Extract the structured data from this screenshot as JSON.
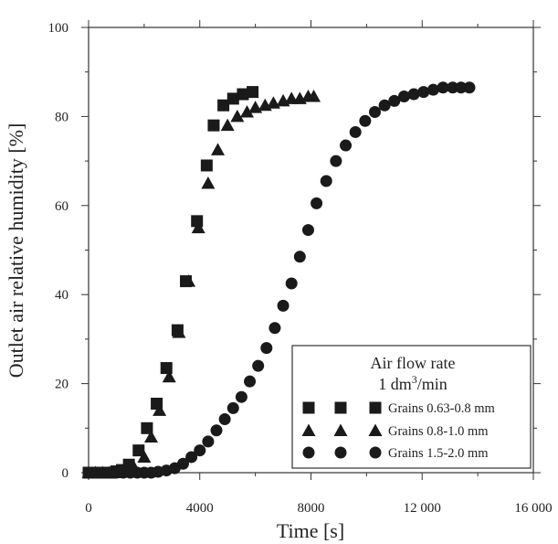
{
  "chart_data": {
    "type": "scatter",
    "xlabel": "Time [s]",
    "ylabel": "Outlet air relative humidity [%]",
    "xlim": [
      0,
      16000
    ],
    "ylim": [
      0,
      100
    ],
    "x_ticks": [
      0,
      4000,
      8000,
      12000,
      16000
    ],
    "x_tick_labels": [
      "0",
      "4000",
      "8000",
      "12 000",
      "16 000"
    ],
    "y_ticks": [
      0,
      20,
      40,
      60,
      80,
      100
    ],
    "y_tick_labels": [
      "0",
      "20",
      "40",
      "60",
      "80",
      "100"
    ],
    "grid": false,
    "legend": {
      "placement": "bottom-right",
      "title_line1": "Air flow rate",
      "title_line2_prefix": "1 dm",
      "title_line2_sup": "3",
      "title_line2_suffix": "/min"
    },
    "series": [
      {
        "name": "Grains 0.63-0.8 mm",
        "marker": "square",
        "color": "#1a1a1a",
        "x": [
          0,
          200,
          400,
          600,
          800,
          1000,
          1200,
          1450,
          1800,
          2100,
          2450,
          2800,
          3200,
          3500,
          3900,
          4250,
          4500,
          4850,
          5200,
          5550,
          5900
        ],
        "y": [
          0,
          0,
          0,
          0,
          0,
          0.3,
          0.6,
          1.8,
          5,
          10,
          15.5,
          23.5,
          32,
          43,
          56.5,
          69,
          78,
          82.5,
          84,
          85,
          85.5
        ]
      },
      {
        "name": "Grains 0.8-1.0 mm",
        "marker": "triangle",
        "color": "#1a1a1a",
        "x": [
          0,
          250,
          500,
          750,
          1000,
          1300,
          1650,
          2000,
          2250,
          2550,
          2900,
          3250,
          3600,
          3950,
          4300,
          4650,
          5000,
          5350,
          5700,
          6000,
          6350,
          6650,
          7000,
          7300,
          7600,
          7900,
          8100
        ],
        "y": [
          0,
          0,
          0,
          0,
          0,
          0.3,
          1,
          3.5,
          8,
          14,
          21.5,
          31.5,
          43,
          55,
          65,
          72.5,
          78,
          80,
          81,
          82,
          82.5,
          83,
          83.5,
          84,
          84,
          84.5,
          84.5
        ]
      },
      {
        "name": "Grains 1.5-2.0 mm",
        "marker": "circle",
        "color": "#1a1a1a",
        "x": [
          0,
          250,
          500,
          750,
          1000,
          1250,
          1500,
          1750,
          2000,
          2250,
          2500,
          2800,
          3100,
          3400,
          3700,
          4000,
          4300,
          4600,
          4900,
          5200,
          5500,
          5800,
          6100,
          6400,
          6700,
          7000,
          7300,
          7600,
          7900,
          8200,
          8550,
          8900,
          9250,
          9600,
          9950,
          10300,
          10650,
          11000,
          11350,
          11700,
          12050,
          12400,
          12750,
          13100,
          13400,
          13700
        ],
        "y": [
          0,
          0,
          0,
          0,
          0,
          0,
          0,
          0,
          0,
          0,
          0.2,
          0.5,
          1,
          2,
          3.5,
          5,
          7,
          9.5,
          12,
          14.5,
          17,
          20.5,
          24,
          28,
          32.5,
          37.5,
          42.5,
          48.5,
          54.5,
          60.5,
          65.5,
          70,
          73.5,
          76.5,
          79,
          81,
          82.5,
          83.5,
          84.5,
          85,
          85.5,
          86,
          86.5,
          86.5,
          86.5,
          86.5
        ]
      }
    ]
  }
}
